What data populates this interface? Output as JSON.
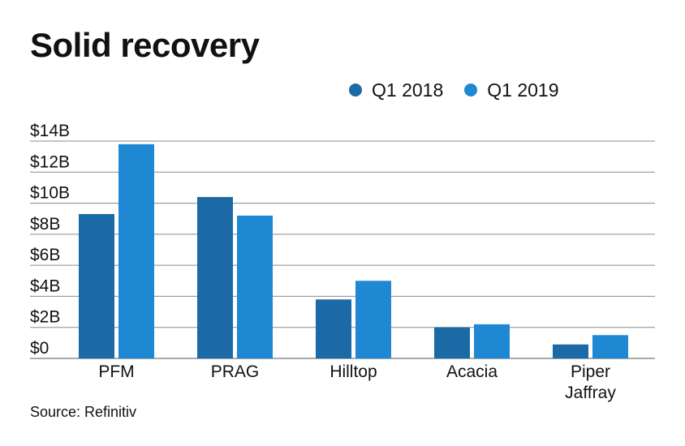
{
  "title": "Solid recovery",
  "source": "Source: Refinitiv",
  "chart_data": {
    "type": "bar",
    "title": "Solid recovery",
    "categories": [
      [
        "PFM"
      ],
      [
        "PRAG"
      ],
      [
        "Hilltop"
      ],
      [
        "Acacia"
      ],
      [
        "Piper",
        "Jaffray"
      ]
    ],
    "series": [
      {
        "name": "Q1 2018",
        "color": "#1b6aa5",
        "values": [
          9.3,
          10.4,
          3.8,
          2.0,
          0.9
        ]
      },
      {
        "name": "Q1 2019",
        "color": "#1e88d3",
        "values": [
          13.8,
          9.2,
          5.0,
          2.2,
          1.5
        ]
      }
    ],
    "ylim": [
      0,
      14
    ],
    "yticks": [
      "$0",
      "$2B",
      "$4B",
      "$6B",
      "$8B",
      "$10B",
      "$12B",
      "$14B"
    ],
    "ytick_values": [
      0,
      2,
      4,
      6,
      8,
      10,
      12,
      14
    ],
    "grid": true,
    "legend": "top-right",
    "xlabel": "",
    "ylabel": ""
  }
}
